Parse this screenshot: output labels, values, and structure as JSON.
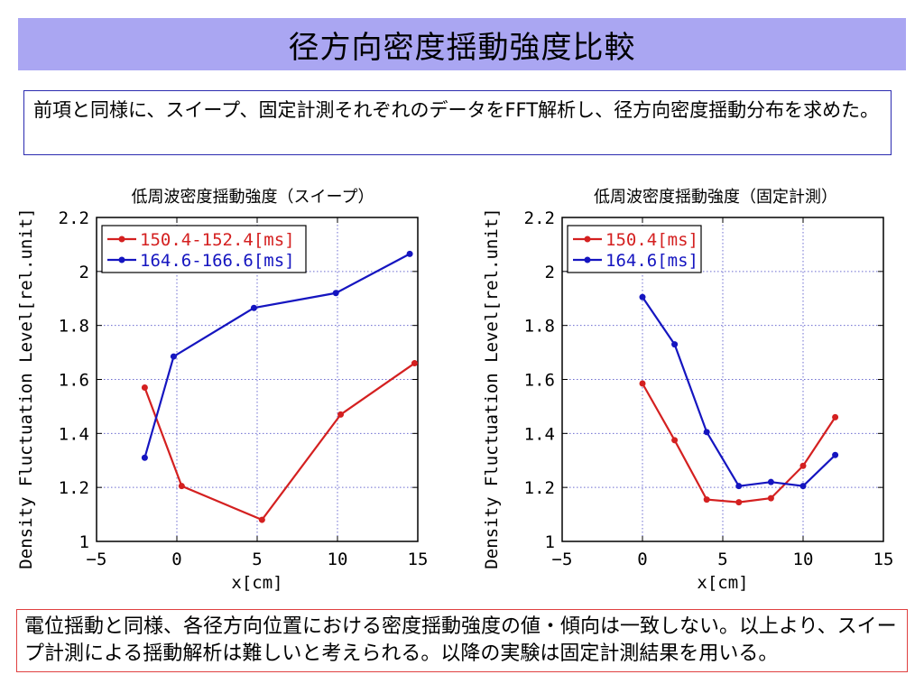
{
  "header": {
    "title": "径方向密度揺動強度比較"
  },
  "intro": {
    "text": "前項と同様に、スイープ、固定計測それぞれのデータをFFT解析し、径方向密度揺動分布を求めた。"
  },
  "conclusion": {
    "text": "電位揺動と同様、各径方向位置における密度揺動強度の値・傾向は一致しない。以上より、スイープ計測による揺動解析は難しいと考えられる。以降の実験は固定計測結果を用いる。"
  },
  "colors": {
    "red": "#d42020",
    "blue": "#1515c0",
    "title_bg": "#aaa6f2"
  },
  "chart_data": [
    {
      "type": "line",
      "title": "低周波密度揺動強度（スイープ）",
      "xlabel": "x[cm]",
      "ylabel": "Density Fluctuation Level[rel.unit]",
      "xlim": [
        -5,
        15
      ],
      "ylim": [
        1,
        2.2
      ],
      "xticks": [
        -5,
        0,
        5,
        10,
        15
      ],
      "yticks": [
        1,
        1.2,
        1.4,
        1.6,
        1.8,
        2,
        2.2
      ],
      "ytick_labels": [
        "1",
        "1.2",
        "1.4",
        "1.6",
        "1.8",
        "2",
        "2.2"
      ],
      "grid": true,
      "legend_position": "top-left",
      "series": [
        {
          "name": "150.4-152.4[ms]",
          "color": "#d42020",
          "x": [
            -2,
            0.3,
            5.3,
            10.2,
            14.8
          ],
          "y": [
            1.57,
            1.205,
            1.08,
            1.47,
            1.66
          ]
        },
        {
          "name": "164.6-166.6[ms]",
          "color": "#1515c0",
          "x": [
            -2,
            -0.2,
            4.8,
            9.9,
            14.5
          ],
          "y": [
            1.31,
            1.685,
            1.865,
            1.92,
            2.065
          ]
        }
      ]
    },
    {
      "type": "line",
      "title": "低周波密度揺動強度（固定計測）",
      "xlabel": "x[cm]",
      "ylabel": "Density Fluctuation Level[rel.unit]",
      "xlim": [
        -5,
        15
      ],
      "ylim": [
        1,
        2.2
      ],
      "xticks": [
        -5,
        0,
        5,
        10,
        15
      ],
      "yticks": [
        1,
        1.2,
        1.4,
        1.6,
        1.8,
        2,
        2.2
      ],
      "ytick_labels": [
        "1",
        "1.2",
        "1.4",
        "1.6",
        "1.8",
        "2",
        "2.2"
      ],
      "grid": true,
      "legend_position": "top-left",
      "series": [
        {
          "name": "150.4[ms]",
          "color": "#d42020",
          "x": [
            0,
            2,
            4,
            6,
            8,
            10,
            12
          ],
          "y": [
            1.585,
            1.375,
            1.155,
            1.145,
            1.16,
            1.28,
            1.46
          ]
        },
        {
          "name": "164.6[ms]",
          "color": "#1515c0",
          "x": [
            0,
            2,
            4,
            6,
            8,
            10,
            12
          ],
          "y": [
            1.905,
            1.73,
            1.405,
            1.205,
            1.22,
            1.205,
            1.32
          ]
        }
      ]
    }
  ]
}
